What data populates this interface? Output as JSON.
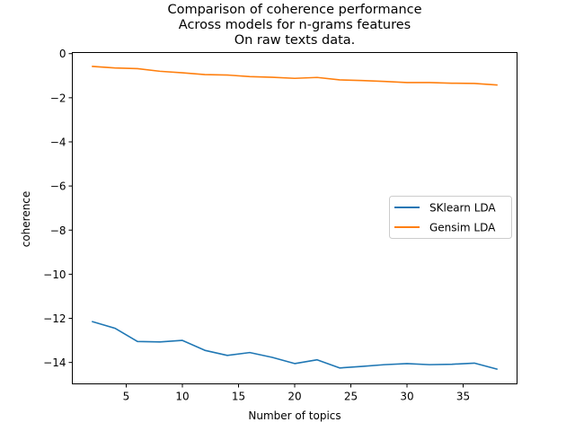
{
  "chart_data": {
    "type": "line",
    "title_lines": [
      "Comparison of coherence performance",
      "Across models for n-grams features",
      "On raw texts data."
    ],
    "xlabel": "Number of topics",
    "ylabel": "coherence",
    "xlim": [
      0.2,
      39.8
    ],
    "ylim": [
      -14.97,
      0.05
    ],
    "x_ticks": [
      5,
      10,
      15,
      20,
      25,
      30,
      35
    ],
    "y_ticks": [
      0,
      -2,
      -4,
      -6,
      -8,
      -10,
      -12,
      -14
    ],
    "x_tick_labels": [
      "5",
      "10",
      "15",
      "20",
      "25",
      "30",
      "35"
    ],
    "y_tick_labels": [
      "0",
      "−2",
      "−4",
      "−6",
      "−8",
      "−10",
      "−12",
      "−14"
    ],
    "x": [
      2,
      4,
      6,
      8,
      10,
      12,
      14,
      16,
      18,
      20,
      22,
      24,
      26,
      28,
      30,
      32,
      34,
      36,
      38
    ],
    "series": [
      {
        "name": "SKlearn LDA",
        "color": "#1f77b4",
        "values": [
          -12.15,
          -12.45,
          -13.05,
          -13.07,
          -13.0,
          -13.45,
          -13.68,
          -13.55,
          -13.77,
          -14.05,
          -13.88,
          -14.25,
          -14.18,
          -14.1,
          -14.05,
          -14.1,
          -14.08,
          -14.03,
          -14.3
        ]
      },
      {
        "name": "Gensim LDA",
        "color": "#ff7f0e",
        "values": [
          -0.58,
          -0.65,
          -0.68,
          -0.8,
          -0.87,
          -0.95,
          -0.97,
          -1.04,
          -1.07,
          -1.12,
          -1.08,
          -1.19,
          -1.22,
          -1.26,
          -1.31,
          -1.31,
          -1.34,
          -1.35,
          -1.42
        ]
      }
    ],
    "legend_position": "center-right",
    "grid": false
  }
}
